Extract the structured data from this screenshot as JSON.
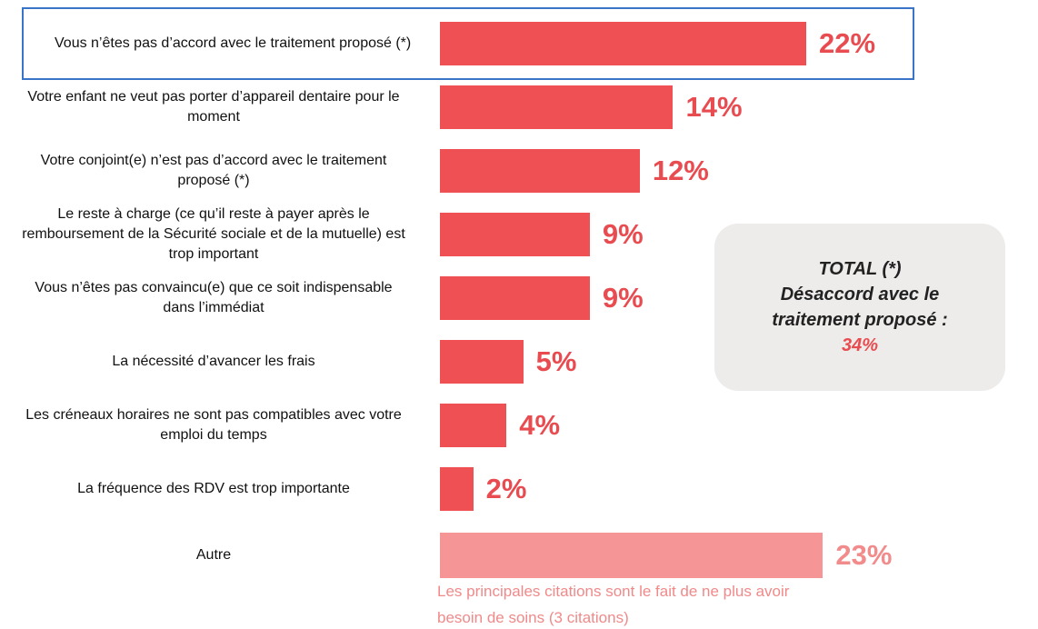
{
  "chart_data": {
    "type": "bar",
    "orientation": "horizontal",
    "categories": [
      "Vous n’êtes pas d’accord avec le traitement proposé (*)",
      "Votre enfant ne veut pas porter d’appareil dentaire pour le moment",
      "Votre conjoint(e) n’est pas d’accord avec le traitement proposé (*)",
      "Le reste à charge (ce qu’il reste à payer après le remboursement de la Sécurité sociale et de la mutuelle) est trop important",
      "Vous n’êtes pas convaincu(e) que ce soit indispensable dans l’immédiat",
      "La nécessité d’avancer les frais",
      "Les créneaux horaires ne sont pas compatibles avec votre emploi du temps",
      "La fréquence des RDV est trop importante",
      "Autre"
    ],
    "values": [
      22,
      14,
      12,
      9,
      9,
      5,
      4,
      2,
      23
    ],
    "value_labels": [
      "22%",
      "14%",
      "12%",
      "9%",
      "9%",
      "5%",
      "4%",
      "2%",
      "23%"
    ],
    "colors": [
      "#ef5053",
      "#ef5053",
      "#ef5053",
      "#ef5053",
      "#ef5053",
      "#ef5053",
      "#ef5053",
      "#ef5053",
      "#f59596"
    ],
    "label_colors": [
      "#e84c50",
      "#e84c50",
      "#e84c50",
      "#e84c50",
      "#e84c50",
      "#e84c50",
      "#e84c50",
      "#e84c50",
      "#f28b8b"
    ],
    "xlim": [
      0,
      25
    ],
    "total_box": {
      "title": "TOTAL (*)",
      "text": "Désaccord avec le traitement proposé :",
      "value": "34%"
    },
    "note": "Les principales citations sont le fait de ne plus avoir besoin de soins  (3 citations)"
  }
}
